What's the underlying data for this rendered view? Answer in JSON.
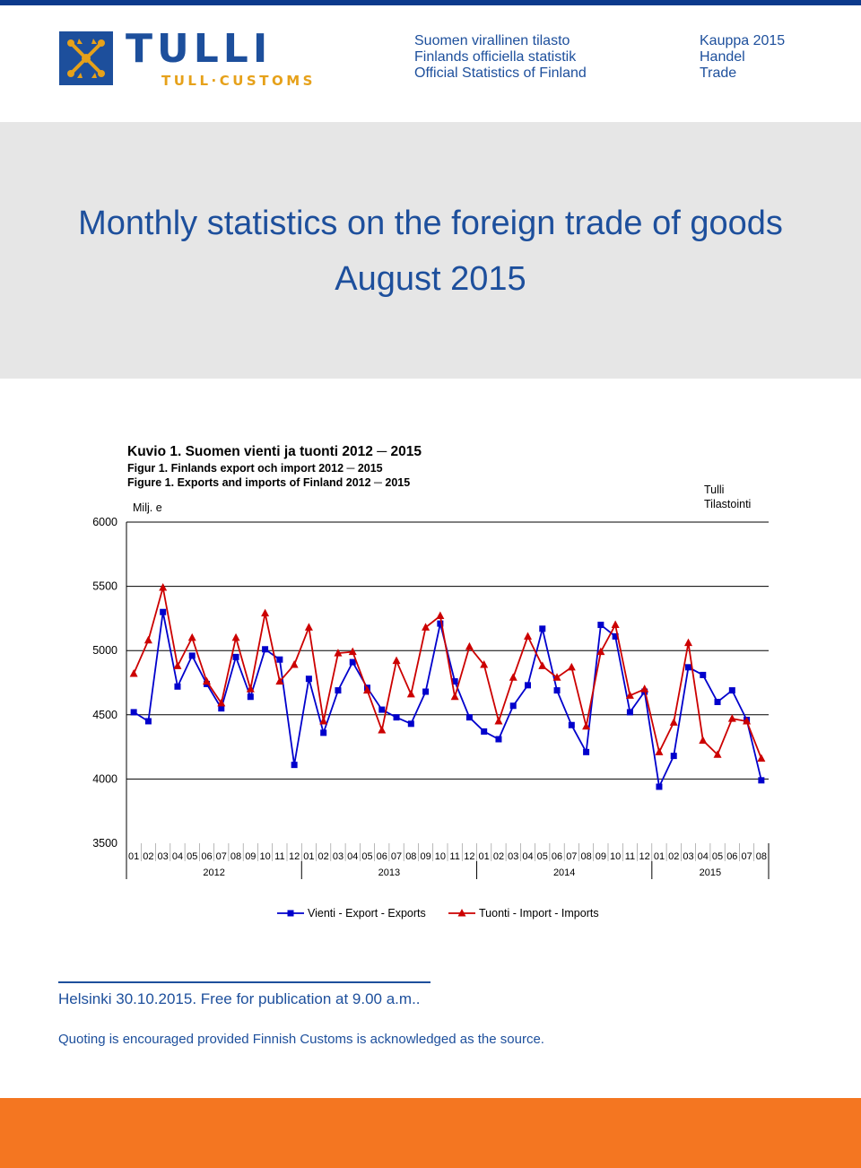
{
  "header": {
    "logo_name": "TULLI",
    "logo_sub": "TULL·CUSTOMS",
    "series_lines": [
      "Suomen virallinen tilasto",
      "Finlands officiella statistik",
      "Official Statistics of Finland"
    ],
    "category_lines": [
      "Kauppa 2015",
      "Handel",
      "Trade"
    ]
  },
  "title": {
    "main": "Monthly statistics on the foreign trade of goods",
    "sub": "August 2015"
  },
  "figure": {
    "caption_lines": [
      "Kuvio 1. Suomen vienti ja tuonti 2012 ─ 2015",
      "Figur 1. Finlands export och import 2012 ─ 2015",
      "Figure 1. Exports and imports of Finland 2012 ─ 2015"
    ],
    "unit": "Milj. e",
    "source_lines": [
      "Tulli",
      "Tilastointi"
    ]
  },
  "chart_data": {
    "type": "line",
    "ylim": [
      3500,
      6000
    ],
    "yticks": [
      3500,
      4000,
      4500,
      5000,
      5500,
      6000
    ],
    "month_labels": [
      "01",
      "02",
      "03",
      "04",
      "05",
      "06",
      "07",
      "08",
      "09",
      "10",
      "11",
      "12",
      "01",
      "02",
      "03",
      "04",
      "05",
      "06",
      "07",
      "08",
      "09",
      "10",
      "11",
      "12",
      "01",
      "02",
      "03",
      "04",
      "05",
      "06",
      "07",
      "08",
      "09",
      "10",
      "11",
      "12",
      "01",
      "02",
      "03",
      "04",
      "05",
      "06",
      "07",
      "08"
    ],
    "years": [
      {
        "label": "2012",
        "start": 0,
        "count": 12
      },
      {
        "label": "2013",
        "start": 12,
        "count": 12
      },
      {
        "label": "2014",
        "start": 24,
        "count": 12
      },
      {
        "label": "2015",
        "start": 36,
        "count": 8
      }
    ],
    "series": [
      {
        "name": "Vienti - Export - Exports",
        "color": "#0000cc",
        "marker": "square",
        "values": [
          4520,
          4450,
          5300,
          4720,
          4960,
          4740,
          4550,
          4950,
          4640,
          5010,
          4930,
          4110,
          4780,
          4360,
          4690,
          4910,
          4710,
          4540,
          4480,
          4430,
          4680,
          5210,
          4760,
          4480,
          4370,
          4310,
          4570,
          4730,
          5170,
          4690,
          4420,
          4210,
          5200,
          5110,
          4520,
          4680,
          3940,
          4180,
          4870,
          4810,
          4600,
          4690,
          4460,
          3990
        ]
      },
      {
        "name": "Tuonti - Import - Imports",
        "color": "#cc0000",
        "marker": "triangle",
        "values": [
          4820,
          5080,
          5490,
          4880,
          5100,
          4760,
          4590,
          5100,
          4700,
          5290,
          4760,
          4890,
          5180,
          4450,
          4980,
          4990,
          4690,
          4380,
          4920,
          4660,
          5180,
          5270,
          4640,
          5030,
          4890,
          4450,
          4790,
          5110,
          4880,
          4790,
          4870,
          4410,
          4990,
          5200,
          4650,
          4700,
          4210,
          4440,
          5060,
          4300,
          4190,
          4470,
          4450,
          4160
        ]
      }
    ],
    "legend_position": "bottom"
  },
  "footer": {
    "release": "Helsinki 30.10.2015. Free for publication at 9.00 a.m..",
    "quote": "Quoting is encouraged provided Finnish Customs is acknowledged as the source."
  }
}
